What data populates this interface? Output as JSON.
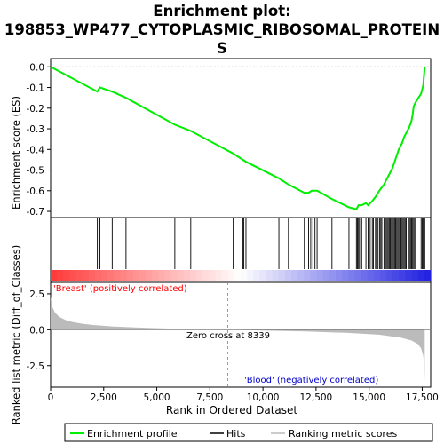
{
  "title_line1": "Enrichment plot:",
  "title_line2": "198853_WP477_CYTOPLASMIC_RIBOSOMAL_PROTEIN",
  "title_line3": "S",
  "colors": {
    "es_line": "#00ee00",
    "hits": "#000000",
    "metric_fill": "#bbbbbb",
    "red": "#ff0000",
    "blue": "#0000cc",
    "zero_line": "#808080"
  },
  "chart_data": {
    "type": "line",
    "xlabel": "Rank in Ordered Dataset",
    "x_ticks": [
      0,
      2500,
      5000,
      7500,
      10000,
      12500,
      15000,
      17500
    ],
    "x_tick_labels": [
      "0",
      "2,500",
      "5,000",
      "7,500",
      "10,000",
      "12,500",
      "15,000",
      "17,500"
    ],
    "xlim": [
      0,
      17900
    ],
    "es_panel": {
      "ylabel": "Enrichment score (ES)",
      "ylim": [
        -0.73,
        0.04
      ],
      "y_ticks": [
        0.0,
        -0.1,
        -0.2,
        -0.3,
        -0.4,
        -0.5,
        -0.6,
        -0.7
      ],
      "y_tick_labels": [
        "0.0",
        "-0.1",
        "-0.2",
        "-0.3",
        "-0.4",
        "-0.5",
        "-0.6",
        "-0.7"
      ],
      "profile_x": [
        0,
        2200,
        2320,
        2900,
        3550,
        5850,
        6600,
        8600,
        9050,
        9200,
        10750,
        11200,
        11950,
        12150,
        12300,
        12450,
        12550,
        13250,
        14050,
        14400,
        14500,
        14650,
        14850,
        14950,
        15150,
        15300,
        15420,
        15550,
        15700,
        15800,
        15900,
        16000,
        16100,
        16200,
        16300,
        16400,
        16550,
        16650,
        16750,
        16900,
        17000,
        17050,
        17100,
        17200,
        17450,
        17550,
        17620
      ],
      "profile_y": [
        0.0,
        -0.12,
        -0.1,
        -0.12,
        -0.15,
        -0.28,
        -0.31,
        -0.42,
        -0.45,
        -0.46,
        -0.54,
        -0.57,
        -0.61,
        -0.61,
        -0.6,
        -0.6,
        -0.6,
        -0.64,
        -0.68,
        -0.69,
        -0.67,
        -0.67,
        -0.66,
        -0.67,
        -0.65,
        -0.63,
        -0.61,
        -0.59,
        -0.57,
        -0.55,
        -0.53,
        -0.51,
        -0.49,
        -0.46,
        -0.43,
        -0.4,
        -0.37,
        -0.34,
        -0.32,
        -0.29,
        -0.26,
        -0.23,
        -0.19,
        -0.17,
        -0.13,
        -0.09,
        0.0
      ]
    },
    "hits": [
      2200,
      2320,
      2900,
      3550,
      5850,
      6600,
      8600,
      9050,
      9100,
      9200,
      10750,
      11200,
      11950,
      12150,
      12250,
      12350,
      12450,
      12550,
      13250,
      14050,
      14400,
      14450,
      14500,
      14550,
      14650,
      14850,
      14950,
      15050,
      15150,
      15200,
      15300,
      15350,
      15420,
      15500,
      15550,
      15600,
      15700,
      15750,
      15800,
      15850,
      15900,
      15950,
      16000,
      16050,
      16100,
      16150,
      16200,
      16250,
      16300,
      16350,
      16400,
      16450,
      16500,
      16550,
      16600,
      16650,
      16700,
      16750,
      16850,
      16900,
      16950,
      17000,
      17050,
      17100,
      17150,
      17200,
      17450,
      17500,
      17550,
      17620
    ],
    "metric_panel": {
      "ylabel": "Ranked list metric (Diff_of_Classes)",
      "ylim": [
        -4.0,
        3.3
      ],
      "y_ticks": [
        2.5,
        0.0,
        -2.5
      ],
      "y_tick_labels": [
        "2.5",
        "0.0",
        "-2.5"
      ],
      "metric_x": [
        0,
        80,
        200,
        400,
        700,
        1000,
        1500,
        2000,
        3000,
        4000,
        5000,
        6000,
        7000,
        8339,
        10000,
        12000,
        14000,
        15500,
        16500,
        17000,
        17300,
        17450,
        17550,
        17600,
        17620
      ],
      "metric_y": [
        2.3,
        1.6,
        1.2,
        0.9,
        0.68,
        0.55,
        0.42,
        0.33,
        0.22,
        0.16,
        0.11,
        0.07,
        0.04,
        0.0,
        -0.05,
        -0.12,
        -0.22,
        -0.35,
        -0.55,
        -0.75,
        -1.0,
        -1.3,
        -1.8,
        -2.5,
        -3.6
      ]
    },
    "zero_cross_label": "Zero cross at 8339",
    "zero_cross_x": 8339,
    "pos_label": "'Breast' (positively correlated)",
    "neg_label": "'Blood' (negatively correlated)",
    "legend": [
      "Enrichment profile",
      "Hits",
      "Ranking metric scores"
    ]
  }
}
